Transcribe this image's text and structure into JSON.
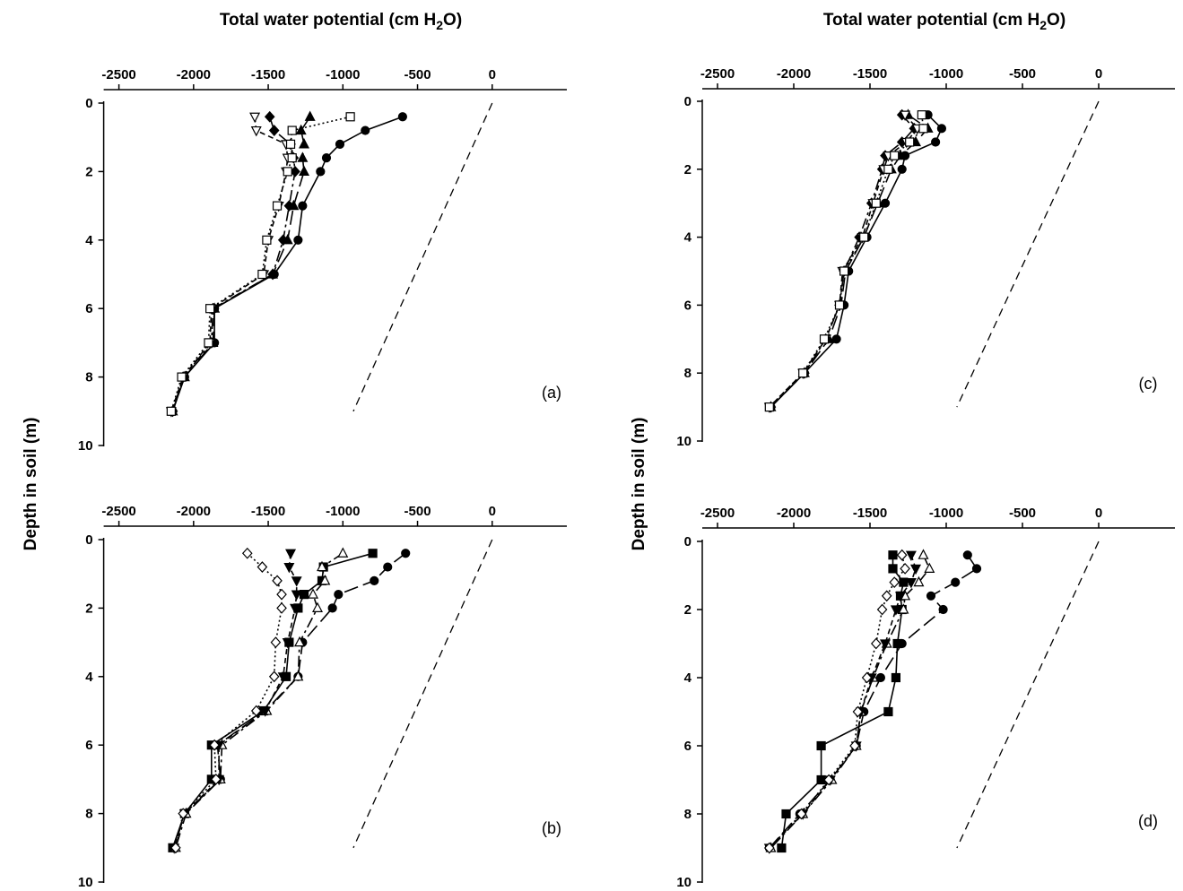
{
  "figure": {
    "top_xlabel_left": "Total water potential (cm H",
    "top_xlabel_right": "Total water potential (cm H",
    "xlabel_sub": "2",
    "xlabel_tail": "O)",
    "ylabel_left": "Depth in soil (m)",
    "ylabel_right": "Depth in soil (m)"
  },
  "chart_data": [
    {
      "type": "line",
      "panel": "(a)",
      "xlim": [
        -2500,
        500
      ],
      "ylim": [
        0,
        10
      ],
      "xticks": [
        "-2500",
        "-2000",
        "-1500",
        "-1000",
        "-500",
        "0"
      ],
      "yticks": [
        "0",
        "2",
        "4",
        "6",
        "8",
        "10"
      ],
      "reference_line": {
        "x": [
          0,
          -930
        ],
        "y": [
          0,
          9
        ]
      },
      "series": [
        {
          "marker": "circle-filled",
          "line": "solid",
          "x": [
            -600,
            -850,
            -1020,
            -1110,
            -1150,
            -1270,
            -1300,
            -1460,
            -1860,
            -1860,
            -2060,
            -2140
          ],
          "y": [
            0.4,
            0.8,
            1.2,
            1.6,
            2,
            3,
            4,
            5,
            6,
            7,
            8,
            9
          ]
        },
        {
          "marker": "triangle-up-filled",
          "line": "longdash",
          "x": [
            -1220,
            -1280,
            -1260,
            -1270,
            -1260,
            -1330,
            -1370,
            -1470,
            -1860,
            -1870,
            -2060,
            -2140
          ],
          "y": [
            0.4,
            0.8,
            1.2,
            1.6,
            2,
            3,
            4,
            5,
            6,
            7,
            8,
            9
          ]
        },
        {
          "marker": "diamond-filled",
          "line": "dashdot",
          "x": [
            -1490,
            -1460,
            -1350,
            -1330,
            -1320,
            -1360,
            -1400,
            -1470,
            -1870,
            -1880,
            -2070,
            -2140
          ],
          "y": [
            0.4,
            0.8,
            1.2,
            1.6,
            2,
            3,
            4,
            5,
            6,
            7,
            8,
            9
          ]
        },
        {
          "marker": "triangle-down-open",
          "line": "dash",
          "x": [
            -1590,
            -1580,
            -1380,
            -1370,
            -1380,
            -1430,
            -1500,
            -1530,
            -1880,
            -1890,
            -2070,
            -2150
          ],
          "y": [
            0.4,
            0.8,
            1.2,
            1.6,
            2,
            3,
            4,
            5,
            6,
            7,
            8,
            9
          ]
        },
        {
          "marker": "square-open",
          "line": "dotted",
          "x": [
            -950,
            -1340,
            -1350,
            -1340,
            -1370,
            -1440,
            -1510,
            -1540,
            -1890,
            -1900,
            -2080,
            -2150
          ],
          "y": [
            0.4,
            0.8,
            1.2,
            1.6,
            2,
            3,
            4,
            5,
            6,
            7,
            8,
            9
          ]
        }
      ]
    },
    {
      "type": "line",
      "panel": "(b)",
      "xlim": [
        -2500,
        500
      ],
      "ylim": [
        0,
        10
      ],
      "xticks": [
        "-2500",
        "-2000",
        "-1500",
        "-1000",
        "-500",
        "0"
      ],
      "yticks": [
        "0",
        "2",
        "4",
        "6",
        "8",
        "10"
      ],
      "reference_line": {
        "x": [
          0,
          -930
        ],
        "y": [
          0,
          9
        ]
      },
      "series": [
        {
          "marker": "circle-filled",
          "line": "longdash",
          "x": [
            -580,
            -700,
            -790,
            -1030,
            -1070,
            -1270,
            -1300,
            -1520,
            -1840,
            -1820,
            -2060,
            -2130
          ],
          "y": [
            0.4,
            0.8,
            1.2,
            1.6,
            2,
            3,
            4,
            5,
            6,
            7,
            8,
            9
          ]
        },
        {
          "marker": "square-filled",
          "line": "solid",
          "x": [
            -800,
            -1130,
            -1140,
            -1260,
            -1300,
            -1360,
            -1380,
            -1530,
            -1880,
            -1880,
            -2060,
            -2140
          ],
          "y": [
            0.4,
            0.8,
            1.2,
            1.6,
            2,
            3,
            4,
            5,
            6,
            7,
            8,
            9
          ]
        },
        {
          "marker": "triangle-up-open",
          "line": "dashdot",
          "x": [
            -1000,
            -1140,
            -1120,
            -1200,
            -1170,
            -1290,
            -1300,
            -1510,
            -1810,
            -1820,
            -2050,
            -2120
          ],
          "y": [
            0.4,
            0.8,
            1.2,
            1.6,
            2,
            3,
            4,
            5,
            6,
            7,
            8,
            9
          ]
        },
        {
          "marker": "triangle-down-filled",
          "line": "dash",
          "x": [
            -1350,
            -1360,
            -1310,
            -1310,
            -1320,
            -1370,
            -1400,
            -1520,
            -1830,
            -1830,
            -2060,
            -2130
          ],
          "y": [
            0.4,
            0.8,
            1.2,
            1.6,
            2,
            3,
            4,
            5,
            6,
            7,
            8,
            9
          ]
        },
        {
          "marker": "diamond-open",
          "line": "dotted",
          "x": [
            -1640,
            -1540,
            -1440,
            -1410,
            -1410,
            -1450,
            -1460,
            -1580,
            -1860,
            -1850,
            -2070,
            -2120
          ],
          "y": [
            0.4,
            0.8,
            1.2,
            1.6,
            2,
            3,
            4,
            5,
            6,
            7,
            8,
            9
          ]
        }
      ]
    },
    {
      "type": "line",
      "panel": "(c)",
      "xlim": [
        -2500,
        500
      ],
      "ylim": [
        0,
        10
      ],
      "xticks": [
        "-2500",
        "-2000",
        "-1500",
        "-1000",
        "-500",
        "0"
      ],
      "yticks": [
        "0",
        "2",
        "4",
        "6",
        "8",
        "10"
      ],
      "reference_line": {
        "x": [
          0,
          -930
        ],
        "y": [
          0,
          9
        ]
      },
      "series": [
        {
          "marker": "circle-filled",
          "line": "solid",
          "x": [
            -1120,
            -1030,
            -1070,
            -1270,
            -1290,
            -1400,
            -1520,
            -1640,
            -1670,
            -1720,
            -1930,
            -2150
          ],
          "y": [
            0.4,
            0.8,
            1.2,
            1.6,
            2,
            3,
            4,
            5,
            6,
            7,
            8,
            9
          ]
        },
        {
          "marker": "triangle-up-filled",
          "line": "longdash",
          "x": [
            -1250,
            -1120,
            -1200,
            -1300,
            -1360,
            -1450,
            -1540,
            -1660,
            -1690,
            -1770,
            -1930,
            -2150
          ],
          "y": [
            0.4,
            0.8,
            1.2,
            1.6,
            2,
            3,
            4,
            5,
            6,
            7,
            8,
            9
          ]
        },
        {
          "marker": "diamond-filled",
          "line": "dashdot",
          "x": [
            -1290,
            -1210,
            -1290,
            -1400,
            -1420,
            -1490,
            -1570,
            -1670,
            -1700,
            -1790,
            -1930,
            -2150
          ],
          "y": [
            0.4,
            0.8,
            1.2,
            1.6,
            2,
            3,
            4,
            5,
            6,
            7,
            8,
            9
          ]
        },
        {
          "marker": "triangle-down-open",
          "line": "dash",
          "x": [
            -1270,
            -1190,
            -1260,
            -1380,
            -1410,
            -1480,
            -1550,
            -1680,
            -1700,
            -1790,
            -1940,
            -2160
          ],
          "y": [
            0.4,
            0.8,
            1.2,
            1.6,
            2,
            3,
            4,
            5,
            6,
            7,
            8,
            9
          ]
        },
        {
          "marker": "square-open",
          "line": "dotted",
          "x": [
            -1160,
            -1150,
            -1240,
            -1340,
            -1380,
            -1460,
            -1540,
            -1670,
            -1700,
            -1800,
            -1940,
            -2160
          ],
          "y": [
            0.4,
            0.8,
            1.2,
            1.6,
            2,
            3,
            4,
            5,
            6,
            7,
            8,
            9
          ]
        }
      ]
    },
    {
      "type": "line",
      "panel": "(d)",
      "xlim": [
        -2500,
        500
      ],
      "ylim": [
        0,
        10
      ],
      "xticks": [
        "-2500",
        "-2000",
        "-1500",
        "-1000",
        "-500",
        "0"
      ],
      "yticks": [
        "0",
        "2",
        "4",
        "6",
        "8",
        "10"
      ],
      "reference_line": {
        "x": [
          0,
          -930
        ],
        "y": [
          0,
          9
        ]
      },
      "series": [
        {
          "marker": "circle-filled",
          "line": "longdash",
          "x": [
            -860,
            -800,
            -940,
            -1100,
            -1020,
            -1290,
            -1430,
            -1540,
            -1590,
            -1760,
            -1960,
            -2160
          ],
          "y": [
            0.4,
            0.8,
            1.2,
            1.6,
            2,
            3,
            4,
            5,
            6,
            7,
            8,
            9
          ]
        },
        {
          "marker": "square-filled",
          "line": "solid",
          "x": [
            -1350,
            -1350,
            -1280,
            -1300,
            -1290,
            -1320,
            -1330,
            -1380,
            -1820,
            -1820,
            -2050,
            -2080
          ],
          "y": [
            0.4,
            0.8,
            1.2,
            1.6,
            2,
            3,
            4,
            5,
            6,
            7,
            8,
            9
          ]
        },
        {
          "marker": "triangle-up-open",
          "line": "dashdot",
          "x": [
            -1150,
            -1110,
            -1180,
            -1270,
            -1280,
            -1390,
            -1480,
            -1560,
            -1590,
            -1750,
            -1940,
            -2150
          ],
          "y": [
            0.4,
            0.8,
            1.2,
            1.6,
            2,
            3,
            4,
            5,
            6,
            7,
            8,
            9
          ]
        },
        {
          "marker": "triangle-down-filled",
          "line": "dash",
          "x": [
            -1230,
            -1200,
            -1230,
            -1300,
            -1330,
            -1400,
            -1490,
            -1560,
            -1590,
            -1760,
            -1940,
            -2160
          ],
          "y": [
            0.4,
            0.8,
            1.2,
            1.6,
            2,
            3,
            4,
            5,
            6,
            7,
            8,
            9
          ]
        },
        {
          "marker": "diamond-open",
          "line": "dotted",
          "x": [
            -1290,
            -1270,
            -1340,
            -1390,
            -1420,
            -1460,
            -1520,
            -1580,
            -1600,
            -1770,
            -1950,
            -2160
          ],
          "y": [
            0.4,
            0.8,
            1.2,
            1.6,
            2,
            3,
            4,
            5,
            6,
            7,
            8,
            9
          ]
        }
      ]
    }
  ]
}
